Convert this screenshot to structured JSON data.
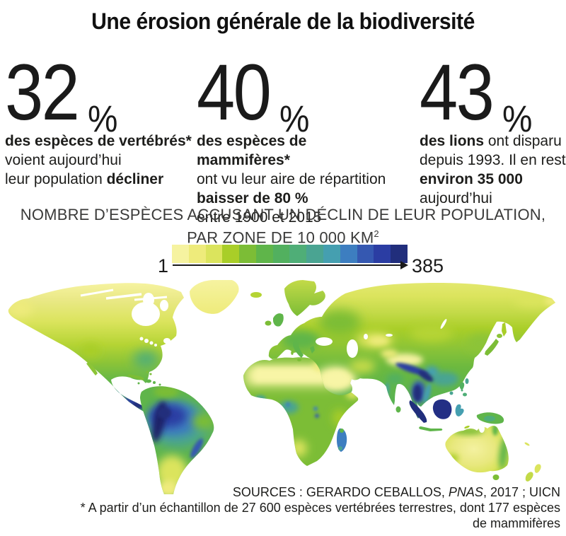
{
  "title": "Une érosion générale de la biodiversité",
  "stats": [
    {
      "value": "32",
      "unit": "%",
      "lines": [
        [
          {
            "t": "des espèces de vertébrés*",
            "b": true
          }
        ],
        [
          {
            "t": "voient aujourd’hui",
            "b": false
          }
        ],
        [
          {
            "t": "leur population ",
            "b": false
          },
          {
            "t": "décliner",
            "b": true
          }
        ]
      ]
    },
    {
      "value": "40",
      "unit": "%",
      "lines": [
        [
          {
            "t": "des espèces de mammifères*",
            "b": true
          }
        ],
        [
          {
            "t": "ont vu leur aire de répartition",
            "b": false
          }
        ],
        [
          {
            "t": "baisser de 80 %",
            "b": true
          }
        ],
        [
          {
            "t": "entre 1900 et 2015",
            "b": false
          }
        ]
      ]
    },
    {
      "value": "43",
      "unit": "%",
      "lines": [
        [
          {
            "t": "des lions",
            "b": true
          },
          {
            "t": " ont disparu",
            "b": false
          }
        ],
        [
          {
            "t": "depuis 1993. Il en reste",
            "b": false
          }
        ],
        [
          {
            "t": "environ 35 000",
            "b": true
          }
        ],
        [
          {
            "t": " aujourd’hui",
            "b": false
          }
        ]
      ]
    }
  ],
  "legend": {
    "title_line1": "NOMBRE D’ESPÈCES ACCUSANT UN DÉCLIN DE LEUR POPULATION,",
    "title_line2_prefix": "PAR ZONE DE 10 000 KM",
    "title_line2_sup": "2",
    "min_label": "1",
    "max_label": "385",
    "colors": [
      "#f6f3a0",
      "#eeeb7b",
      "#dbe45d",
      "#a9ce28",
      "#7cbd36",
      "#5fb54a",
      "#52b05f",
      "#4fae77",
      "#4aa492",
      "#459fb0",
      "#3d7ec0",
      "#3558b1",
      "#2b3da3",
      "#212e7c"
    ]
  },
  "sources": {
    "line1_prefix": "SOURCES : GERARDO CEBALLOS, ",
    "line1_italic": "PNAS",
    "line1_suffix": ", 2017 ; UICN",
    "line2": "* A partir d’un échantillon de 27 600 espèces vertébrées terrestres, dont 177 espèces",
    "line3": "de mammifères"
  },
  "chart_data": {
    "type": "heatmap",
    "title": "NOMBRE D’ESPÈCES ACCUSANT UN DÉCLIN DE LEUR POPULATION, PAR ZONE DE 10 000 KM²",
    "scale": {
      "min": 1,
      "max": 385,
      "palette": [
        "#f6f3a0",
        "#eeeb7b",
        "#dbe45d",
        "#a9ce28",
        "#7cbd36",
        "#5fb54a",
        "#52b05f",
        "#4fae77",
        "#4aa492",
        "#459fb0",
        "#3d7ec0",
        "#3558b1",
        "#2b3da3",
        "#212e7c"
      ],
      "legend_position": "top"
    },
    "regions": [
      {
        "name": "Arctic Canada / Alaska / Greenland",
        "value_approx": 10
      },
      {
        "name": "Canada boreal belt",
        "value_approx": 70
      },
      {
        "name": "United States",
        "value_approx": 140
      },
      {
        "name": "Mexico / Central America",
        "value_approx": 320
      },
      {
        "name": "Amazon basin and Andes",
        "value_approx": 360
      },
      {
        "name": "Eastern Brazil",
        "value_approx": 150
      },
      {
        "name": "Southern South America (Patagonia)",
        "value_approx": 50
      },
      {
        "name": "Europe",
        "value_approx": 150
      },
      {
        "name": "Siberia / northern Russia",
        "value_approx": 60
      },
      {
        "name": "Sahara / Arabia / Central Asia deserts",
        "value_approx": 15
      },
      {
        "name": "Sub-Saharan Africa",
        "value_approx": 160
      },
      {
        "name": "Congo basin",
        "value_approx": 220
      },
      {
        "name": "Madagascar",
        "value_approx": 260
      },
      {
        "name": "India",
        "value_approx": 170
      },
      {
        "name": "Himalaya foothills",
        "value_approx": 340
      },
      {
        "name": "Indochina / Malaysia / Sumatra / Borneo",
        "value_approx": 375
      },
      {
        "name": "Australia interior",
        "value_approx": 20
      },
      {
        "name": "Australia north and east coasts",
        "value_approx": 120
      }
    ]
  }
}
